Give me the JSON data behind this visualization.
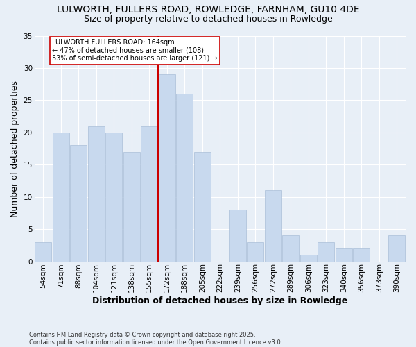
{
  "title": "LULWORTH, FULLERS ROAD, ROWLEDGE, FARNHAM, GU10 4DE",
  "subtitle": "Size of property relative to detached houses in Rowledge",
  "xlabel": "Distribution of detached houses by size in Rowledge",
  "ylabel": "Number of detached properties",
  "footnote": "Contains HM Land Registry data © Crown copyright and database right 2025.\nContains public sector information licensed under the Open Government Licence v3.0.",
  "bins": [
    "54sqm",
    "71sqm",
    "88sqm",
    "104sqm",
    "121sqm",
    "138sqm",
    "155sqm",
    "172sqm",
    "188sqm",
    "205sqm",
    "222sqm",
    "239sqm",
    "256sqm",
    "272sqm",
    "289sqm",
    "306sqm",
    "323sqm",
    "340sqm",
    "356sqm",
    "373sqm",
    "390sqm"
  ],
  "values": [
    3,
    20,
    18,
    21,
    20,
    17,
    21,
    29,
    26,
    17,
    0,
    8,
    3,
    11,
    4,
    1,
    3,
    2,
    2,
    0,
    4
  ],
  "bar_color": "#c8d9ee",
  "bar_edge_color": "#aabfd8",
  "vline_color": "#cc0000",
  "annotation_text": "LULWORTH FULLERS ROAD: 164sqm\n← 47% of detached houses are smaller (108)\n53% of semi-detached houses are larger (121) →",
  "annotation_box_color": "#ffffff",
  "annotation_box_edge": "#cc0000",
  "ylim": [
    0,
    35
  ],
  "yticks": [
    0,
    5,
    10,
    15,
    20,
    25,
    30,
    35
  ],
  "bg_color": "#e8eff7",
  "plot_bg_color": "#e8eff7",
  "grid_color": "#ffffff",
  "title_fontsize": 10,
  "subtitle_fontsize": 9,
  "label_fontsize": 9,
  "tick_fontsize": 7.5,
  "footnote_fontsize": 6
}
